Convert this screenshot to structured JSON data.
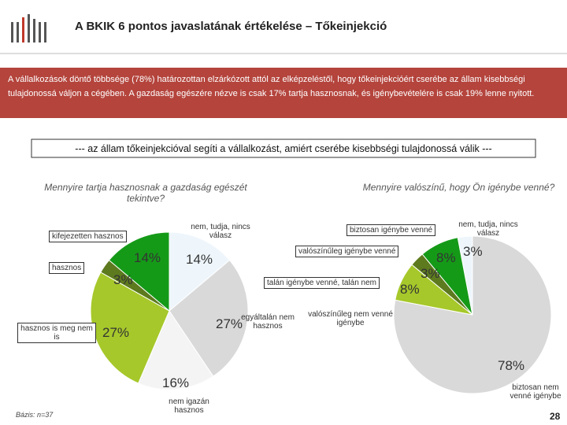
{
  "title": "A BKIK 6 pontos javaslatának értékelése – Tőkeinjekció",
  "summary": "A vállalkozások döntő többsége (78%) határozottan elzárkózott attól az elképzeléstől, hogy tőkeinjekcióért cserébe az állam kisebbségi tulajdonossá váljon a cégében. A gazdaság egészére nézve is csak 17% tartja hasznosnak, és igénybevételére is csak 19% lenne nyitott.",
  "statement": "--- az állam tőkeinjekcióval segíti a vállalkozást, amiért cserébe kisebbségi tulajdonossá válik ---",
  "base_note": "Bázis: n=37",
  "page_number": 28,
  "chart_data": [
    {
      "type": "pie",
      "title": "Mennyire tartja hasznosnak a gazdaság egészét tekintve?",
      "categories": [
        "nem, tudja, nincs válasz",
        "egyáltalán nem hasznos",
        "nem igazán hasznos",
        "hasznos is meg nem is",
        "hasznos",
        "kifejezetten hasznos"
      ],
      "values": [
        14,
        27,
        16,
        27,
        3,
        14
      ],
      "value_labels": [
        "14%",
        "27%",
        "16%",
        "27%",
        "3%",
        "14%"
      ],
      "colors": [
        "#eef6fc",
        "#d9d9d9",
        "#f4f4f4",
        "#a6c82a",
        "#5d7a1e",
        "#159a18"
      ]
    },
    {
      "type": "pie",
      "title": "Mennyire valószínű, hogy Ön igénybe venné?",
      "categories": [
        "biztosan nem venné igénybe",
        "valószínűleg nem venné igénybe",
        "talán igénybe venné, talán nem",
        "valószínűleg igénybe venné",
        "biztosan igénybe venné",
        "nem, tudja, nincs válasz"
      ],
      "values": [
        78,
        0,
        8,
        3,
        8,
        3
      ],
      "value_labels": [
        "78%",
        null,
        "8%",
        "3%",
        "8%",
        "3%"
      ],
      "colors": [
        "#d9d9d9",
        "#f4f4f4",
        "#a6c82a",
        "#5d7a1e",
        "#159a18",
        "#eef6fc"
      ]
    }
  ]
}
